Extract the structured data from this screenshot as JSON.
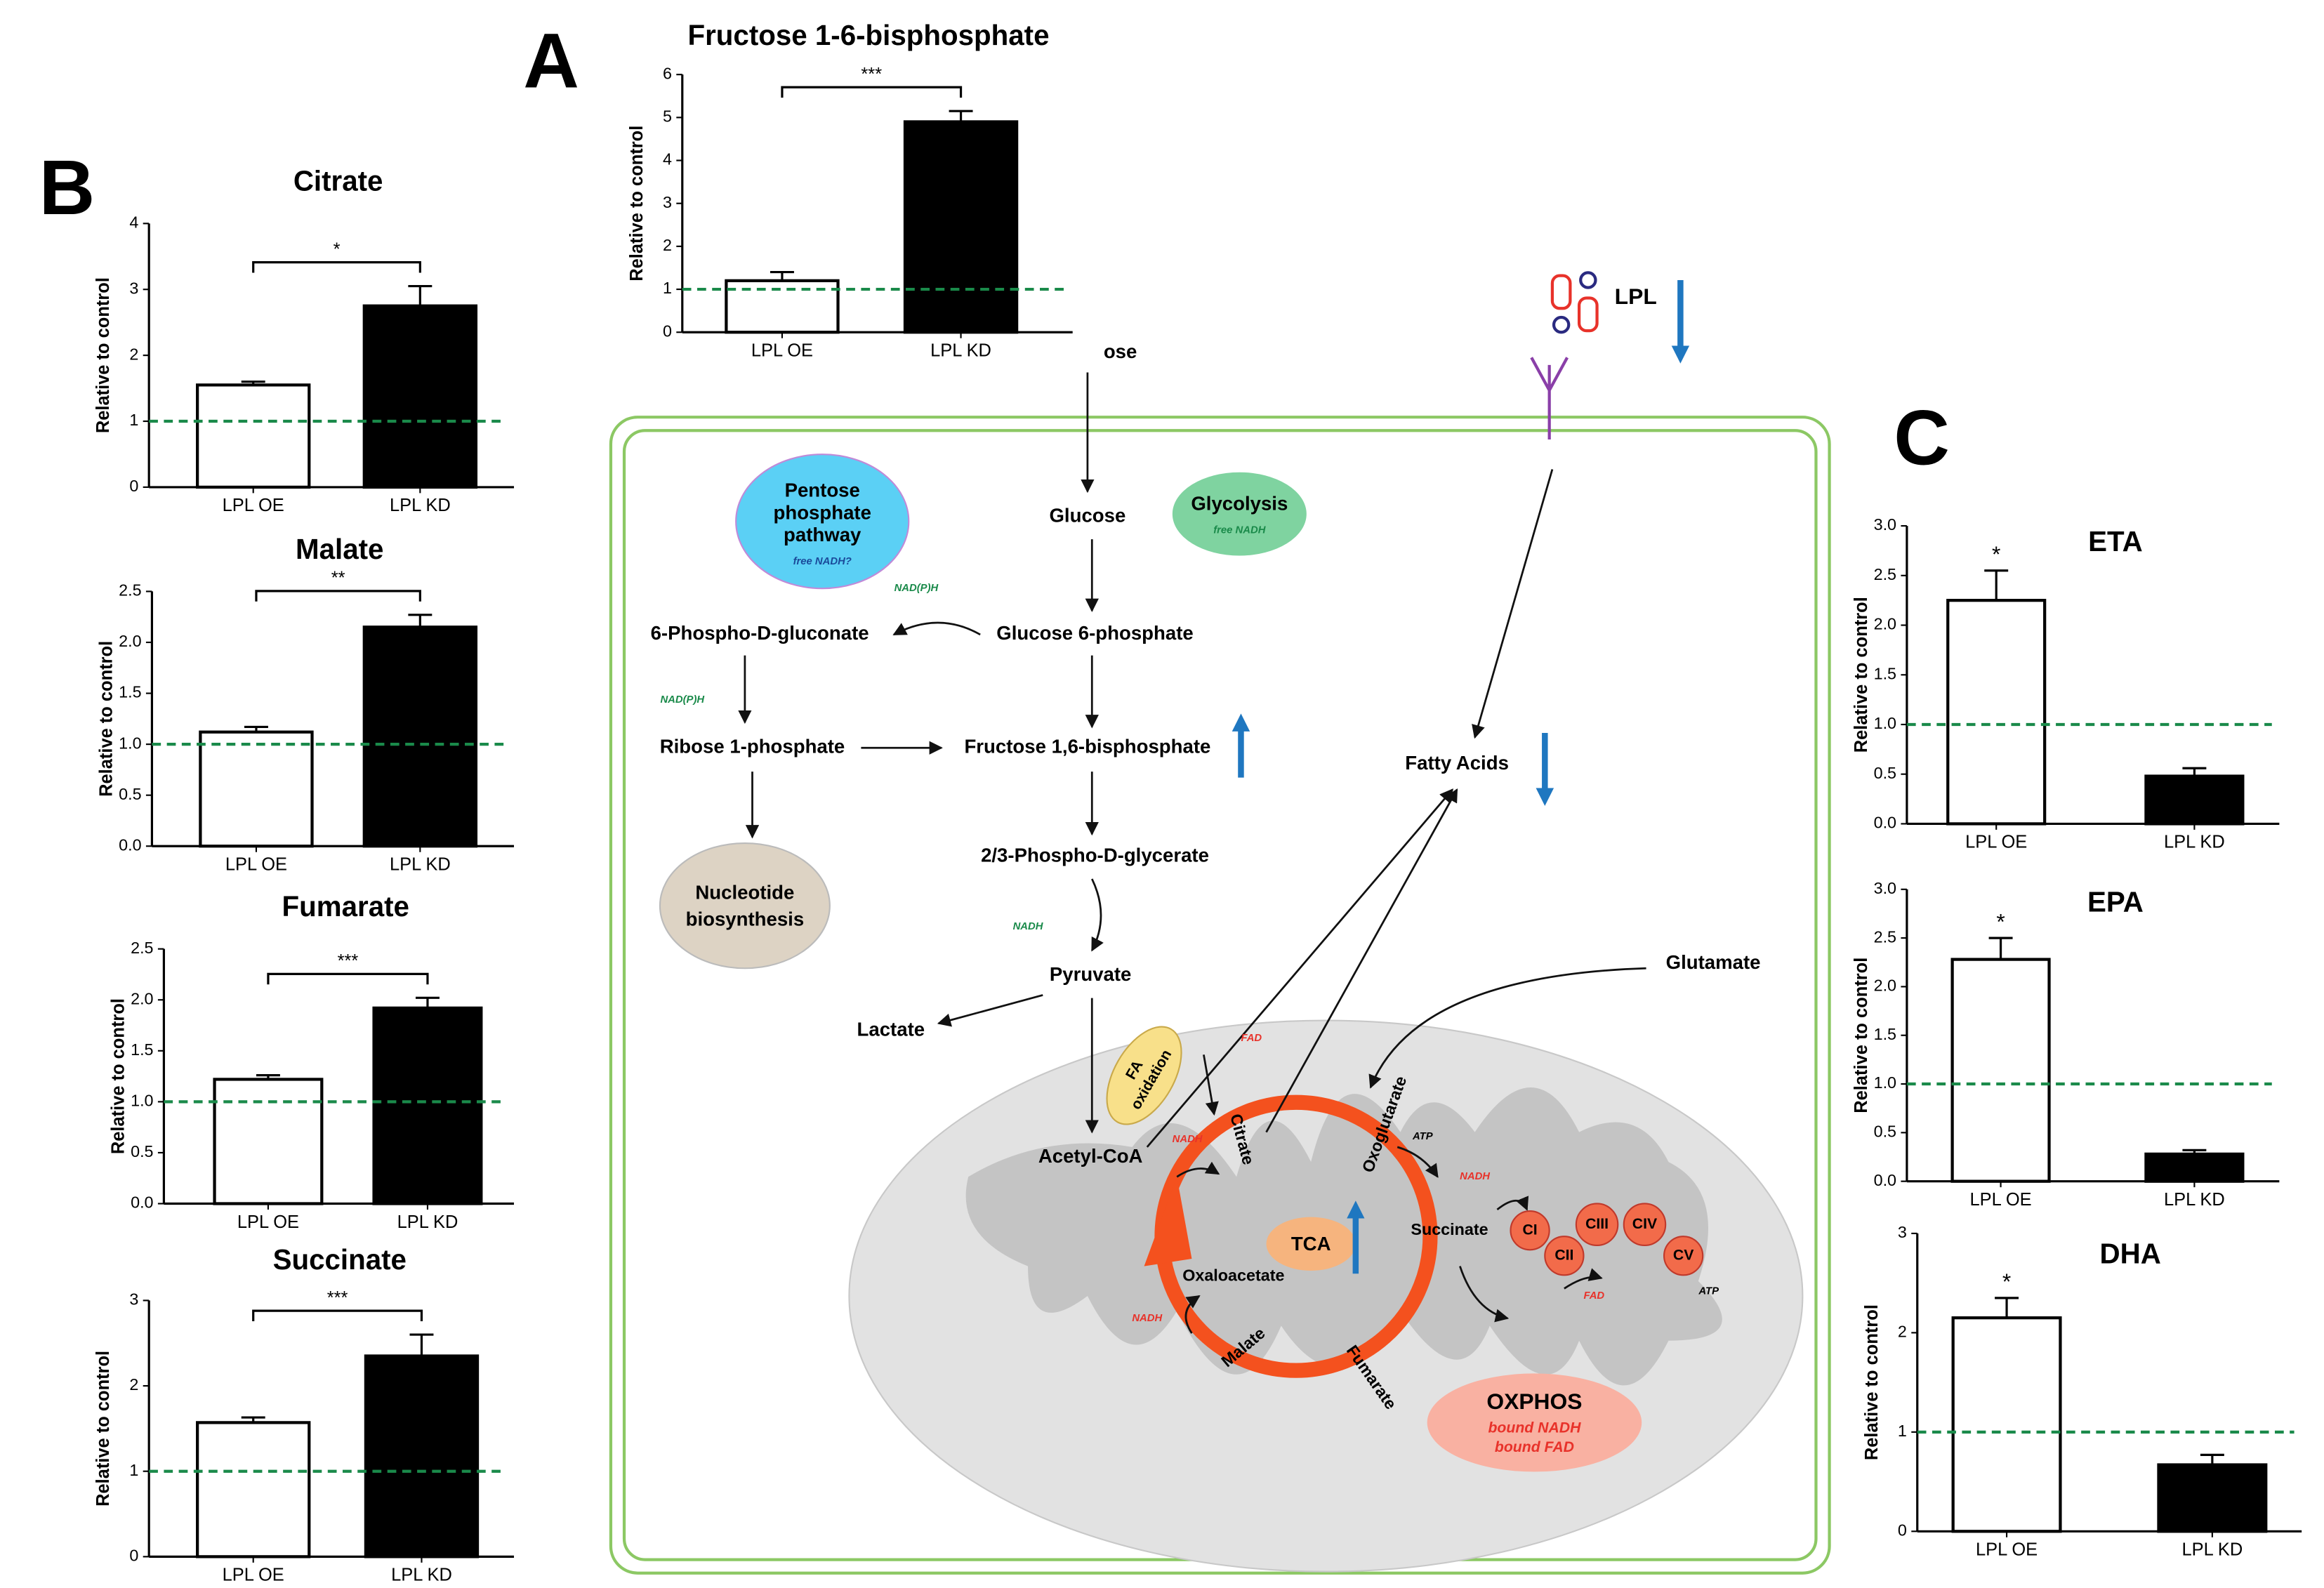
{
  "panels": {
    "a": "A",
    "b": "B",
    "c": "C"
  },
  "chart_data": [
    {
      "type": "bar",
      "title": "Fructose 1-6-bisphosphate",
      "ylabel": "Relative to control",
      "categories": [
        "LPL OE",
        "LPL KD"
      ],
      "values": [
        1.2,
        4.9
      ],
      "errors": [
        0.2,
        0.25
      ],
      "colors": [
        "#ffffff",
        "#000000"
      ],
      "significance": "***",
      "reference_line": 1,
      "reference_color": "#1a8a4a",
      "ylim": [
        0,
        6
      ],
      "yticks": [
        0,
        1,
        2,
        3,
        4,
        5,
        6
      ]
    },
    {
      "type": "bar",
      "title": "Citrate",
      "ylabel": "Relative to control",
      "categories": [
        "LPL OE",
        "LPL KD"
      ],
      "values": [
        1.55,
        2.75
      ],
      "errors": [
        0.05,
        0.3
      ],
      "colors": [
        "#ffffff",
        "#000000"
      ],
      "significance": "*",
      "reference_line": 1,
      "reference_color": "#1a8a4a",
      "ylim": [
        0,
        4
      ],
      "yticks": [
        0,
        1,
        2,
        3,
        4
      ]
    },
    {
      "type": "bar",
      "title": "Malate",
      "ylabel": "Relative to control",
      "categories": [
        "LPL OE",
        "LPL KD"
      ],
      "values": [
        1.12,
        2.15
      ],
      "errors": [
        0.05,
        0.12
      ],
      "colors": [
        "#ffffff",
        "#000000"
      ],
      "significance": "**",
      "reference_line": 1,
      "reference_color": "#1a8a4a",
      "ylim": [
        0,
        2.5
      ],
      "yticks": [
        {
          "value": 0,
          "label": "0.0"
        },
        {
          "value": 0.5,
          "label": "0.5"
        },
        {
          "value": 1,
          "label": "1.0"
        },
        {
          "value": 1.5,
          "label": "1.5"
        },
        {
          "value": 2,
          "label": "2.0"
        },
        {
          "value": 2.5,
          "label": "2.5"
        }
      ]
    },
    {
      "type": "bar",
      "title": "Fumarate",
      "ylabel": "Relative to control",
      "categories": [
        "LPL OE",
        "LPL KD"
      ],
      "values": [
        1.22,
        1.92
      ],
      "errors": [
        0.04,
        0.1
      ],
      "colors": [
        "#ffffff",
        "#000000"
      ],
      "significance": "***",
      "reference_line": 1,
      "reference_color": "#1a8a4a",
      "ylim": [
        0,
        2.5
      ],
      "yticks": [
        {
          "value": 0,
          "label": "0.0"
        },
        {
          "value": 0.5,
          "label": "0.5"
        },
        {
          "value": 1,
          "label": "1.0"
        },
        {
          "value": 1.5,
          "label": "1.5"
        },
        {
          "value": 2,
          "label": "2.0"
        },
        {
          "value": 2.5,
          "label": "2.5"
        }
      ]
    },
    {
      "type": "bar",
      "title": "Succinate",
      "ylabel": "Relative to control",
      "categories": [
        "LPL OE",
        "LPL KD"
      ],
      "values": [
        1.57,
        2.35
      ],
      "errors": [
        0.06,
        0.25
      ],
      "colors": [
        "#ffffff",
        "#000000"
      ],
      "significance": "***",
      "reference_line": 1,
      "reference_color": "#1a8a4a",
      "ylim": [
        0,
        3
      ],
      "yticks": [
        0,
        1,
        2,
        3
      ]
    },
    {
      "type": "bar",
      "title": "ETA",
      "ylabel": "Relative to control",
      "categories": [
        "LPL OE",
        "LPL KD"
      ],
      "values": [
        2.25,
        0.48
      ],
      "errors": [
        0.3,
        0.08
      ],
      "colors": [
        "#ffffff",
        "#000000"
      ],
      "significance": "*",
      "reference_line": 1,
      "reference_color": "#1a8a4a",
      "ylim": [
        0,
        3
      ],
      "yticks": [
        {
          "value": 0,
          "label": "0.0"
        },
        {
          "value": 0.5,
          "label": "0.5"
        },
        {
          "value": 1,
          "label": "1.0"
        },
        {
          "value": 1.5,
          "label": "1.5"
        },
        {
          "value": 2,
          "label": "2.0"
        },
        {
          "value": 2.5,
          "label": "2.5"
        },
        {
          "value": 3,
          "label": "3.0"
        }
      ]
    },
    {
      "type": "bar",
      "title": "EPA",
      "ylabel": "Relative to control",
      "categories": [
        "LPL OE",
        "LPL KD"
      ],
      "values": [
        2.28,
        0.28
      ],
      "errors": [
        0.22,
        0.04
      ],
      "colors": [
        "#ffffff",
        "#000000"
      ],
      "significance": "*",
      "reference_line": 1,
      "reference_color": "#1a8a4a",
      "ylim": [
        0,
        3
      ],
      "yticks": [
        {
          "value": 0,
          "label": "0.0"
        },
        {
          "value": 0.5,
          "label": "0.5"
        },
        {
          "value": 1,
          "label": "1.0"
        },
        {
          "value": 1.5,
          "label": "1.5"
        },
        {
          "value": 2,
          "label": "2.0"
        },
        {
          "value": 2.5,
          "label": "2.5"
        },
        {
          "value": 3,
          "label": "3.0"
        }
      ]
    },
    {
      "type": "bar",
      "title": "DHA",
      "ylabel": "Relative to control",
      "categories": [
        "LPL OE",
        "LPL KD"
      ],
      "values": [
        2.15,
        0.67
      ],
      "errors": [
        0.2,
        0.1
      ],
      "colors": [
        "#ffffff",
        "#000000"
      ],
      "significance": "*",
      "reference_line": 1,
      "reference_color": "#1a8a4a",
      "ylim": [
        0,
        3
      ],
      "yticks": [
        0,
        1,
        2,
        3
      ]
    }
  ],
  "diagram": {
    "ose": "ose",
    "ppp": [
      "Pentose",
      "phosphate",
      "pathway"
    ],
    "ppp_note": "free NADH?",
    "glycolysis": "Glycolysis",
    "glycolysis_note": "free NADH",
    "glucose": "Glucose",
    "nadph_1": "NAD(P)H",
    "phosphogluconate": "6-Phospho-D-gluconate",
    "g6p": "Glucose 6-phosphate",
    "nadph_2": "NAD(P)H",
    "ribose": "Ribose 1-phosphate",
    "f16bp": "Fructose 1,6-bisphosphate",
    "fatty_acids": "Fatty Acids",
    "pdg": "2/3-Phospho-D-glycerate",
    "nucleotide": [
      "Nucleotide",
      "biosynthesis"
    ],
    "nadh_1": "NADH",
    "pyruvate": "Pyruvate",
    "glutamate": "Glutamate",
    "lactate": "Lactate",
    "lpl": "LPL",
    "fa_oxidation": [
      "FA",
      "oxidation"
    ],
    "fad_1": "FAD",
    "acetyl_coa": "Acetyl-CoA",
    "nadh_2": "NADH",
    "citrate": "Citrate",
    "oxoglutarate": "Oxoglutarate",
    "atp_1": "ATP",
    "nadh_3": "NADH",
    "succinate": "Succinate",
    "ci": "CI",
    "cii": "CII",
    "ciii": "CIII",
    "civ": "CIV",
    "cv": "CV",
    "tca": "TCA",
    "oxaloacetate": "Oxaloacetate",
    "fad_2": "FAD",
    "atp_2": "ATP",
    "nadh_4": "NADH",
    "malate": "Malate",
    "fumarate": "Fumarate",
    "oxphos": "OXPHOS",
    "oxphos_notes": [
      "bound NADH",
      "bound FAD"
    ]
  }
}
